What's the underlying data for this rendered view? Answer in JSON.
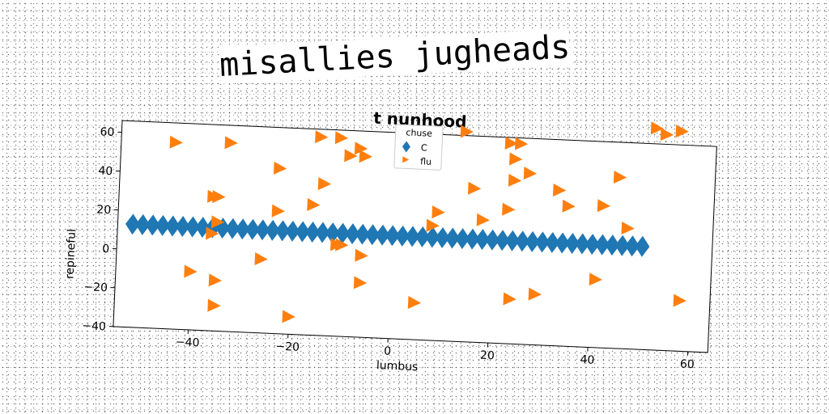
{
  "suptitle": "misallies jugheads",
  "chart_data": {
    "type": "scatter",
    "title": "t nunhood",
    "xlabel": "lumbus",
    "ylabel": "repineful",
    "xlim": [
      -55,
      64
    ],
    "ylim": [
      -40,
      66
    ],
    "xticks": [
      -40,
      -20,
      0,
      20,
      40,
      60
    ],
    "yticks": [
      -40,
      -20,
      0,
      20,
      40,
      60
    ],
    "legend": {
      "title": "chuse",
      "placement": "top-center"
    },
    "grid": false,
    "series": [
      {
        "name": "C",
        "marker": "diamond",
        "color": "#1f77b4",
        "x": [
          -52,
          -50,
          -48,
          -46,
          -44,
          -42,
          -40,
          -38,
          -36,
          -34,
          -32,
          -30,
          -28,
          -26,
          -24,
          -22,
          -20,
          -18,
          -16,
          -14,
          -12,
          -10,
          -8,
          -6,
          -4,
          -2,
          0,
          2,
          4,
          6,
          8,
          10,
          12,
          14,
          16,
          18,
          20,
          22,
          24,
          26,
          28,
          30,
          32,
          34,
          36,
          38,
          40,
          42,
          44,
          46,
          48,
          50
        ],
        "y": [
          13,
          13,
          13,
          13,
          13,
          13,
          13,
          13,
          13,
          13,
          13,
          13,
          13,
          13,
          13,
          13,
          13,
          13,
          13,
          13,
          13,
          13,
          13,
          13,
          13,
          13,
          13,
          13,
          13,
          13,
          13,
          13,
          13,
          13,
          13,
          13,
          13,
          13,
          13,
          13,
          13,
          13,
          13,
          13,
          13,
          13,
          13,
          13,
          13,
          13,
          13,
          13
        ]
      },
      {
        "name": "flu",
        "marker": "triangle-right",
        "color": "#ff7f0e",
        "x": [
          -44,
          -33,
          -23,
          -15,
          -11,
          -9,
          -7,
          -6,
          -14,
          -36,
          -35,
          -23,
          -16,
          -10,
          -36,
          -35,
          -26,
          -11,
          -6,
          -40,
          -35,
          -6,
          -35,
          -20,
          5,
          8,
          9,
          14,
          16,
          18,
          23,
          23,
          25,
          24,
          24,
          27,
          33,
          35,
          42,
          45,
          41,
          47,
          52,
          54,
          57,
          29,
          24,
          58
        ],
        "y": [
          56,
          57,
          45,
          62,
          62,
          53,
          57,
          53,
          38,
          29,
          29,
          23,
          27,
          7,
          10,
          16,
          -2,
          7,
          2,
          -10,
          -14,
          -12,
          -27,
          -31,
          -21,
          19,
          26,
          68,
          39,
          23,
          29,
          63,
          63,
          55,
          44,
          48,
          40,
          32,
          33,
          48,
          -5,
          22,
          74,
          71,
          73,
          -14,
          -17,
          -14
        ]
      }
    ]
  }
}
